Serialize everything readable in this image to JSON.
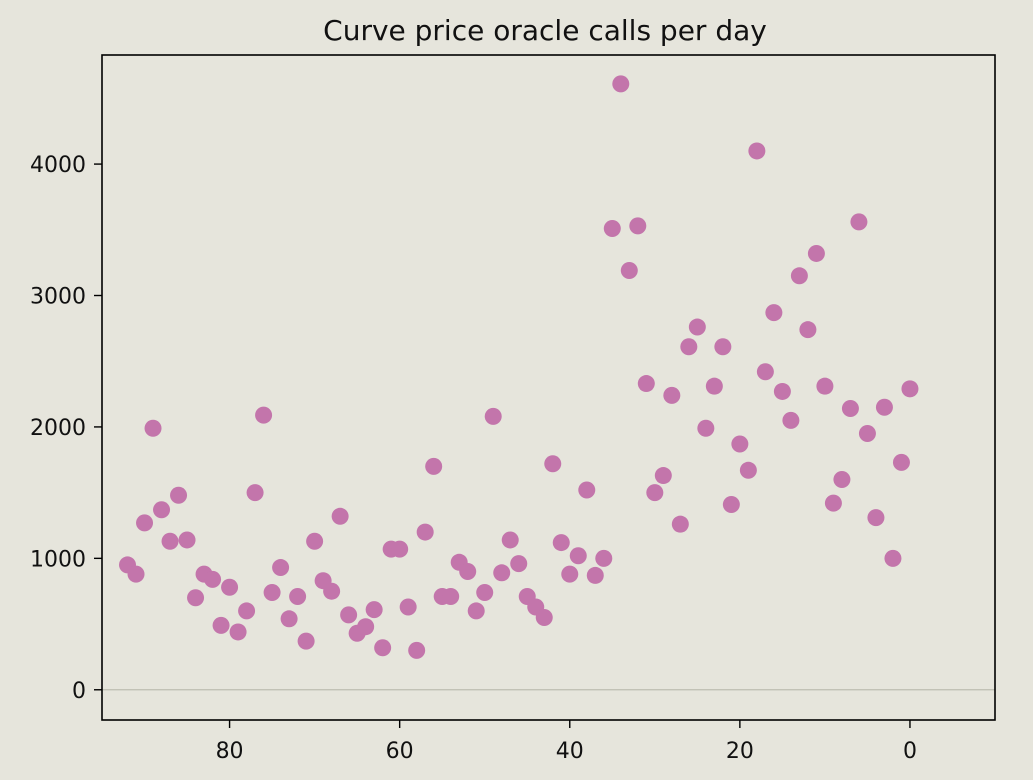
{
  "chart_data": {
    "type": "scatter",
    "title": "Curve price oracle calls per day",
    "xlabel": "",
    "ylabel": "",
    "x_reversed": true,
    "xlim": [
      95,
      -10
    ],
    "ylim": [
      -230,
      4830
    ],
    "x_ticks": [
      80,
      60,
      40,
      20,
      0
    ],
    "y_ticks": [
      0,
      1000,
      2000,
      3000,
      4000
    ],
    "zero_line": true,
    "grid": false,
    "legend": "none",
    "colors": {
      "marker": "#c375ab",
      "background": "#e6e5dc",
      "zero_line": "#bdbdb0",
      "axis": "#000000"
    },
    "x": [
      92,
      91,
      90,
      89,
      88,
      87,
      86,
      85,
      84,
      83,
      82,
      81,
      80,
      79,
      78,
      77,
      76,
      75,
      74,
      73,
      72,
      71,
      70,
      69,
      68,
      67,
      66,
      65,
      64,
      63,
      62,
      61,
      60,
      59,
      58,
      57,
      56,
      55,
      54,
      53,
      52,
      51,
      50,
      49,
      48,
      47,
      46,
      45,
      44,
      43,
      42,
      41,
      40,
      39,
      38,
      37,
      36,
      35,
      34,
      33,
      32,
      31,
      30,
      29,
      28,
      27,
      26,
      25,
      24,
      23,
      22,
      21,
      20,
      19,
      18,
      17,
      16,
      15,
      14,
      13,
      12,
      11,
      10,
      9,
      8,
      7,
      6,
      5,
      4,
      3,
      2,
      1,
      0
    ],
    "y": [
      950,
      880,
      1270,
      1990,
      1370,
      1130,
      1480,
      1140,
      700,
      880,
      840,
      490,
      780,
      440,
      600,
      1500,
      2090,
      740,
      930,
      540,
      710,
      370,
      1130,
      830,
      750,
      1320,
      570,
      430,
      480,
      610,
      320,
      1070,
      1070,
      630,
      300,
      1200,
      1700,
      710,
      710,
      970,
      900,
      600,
      740,
      2080,
      890,
      1140,
      960,
      710,
      630,
      550,
      1720,
      1120,
      880,
      1020,
      1520,
      870,
      1000,
      3510,
      4610,
      3190,
      3530,
      2330,
      1500,
      1630,
      2240,
      1260,
      2610,
      2760,
      1990,
      2310,
      2610,
      1410,
      1870,
      1670,
      4100,
      2420,
      2870,
      2270,
      2050,
      3150,
      2740,
      3320,
      2310,
      1420,
      1600,
      2140,
      3560,
      1950,
      1310,
      2150,
      1000,
      1730,
      2290
    ]
  }
}
